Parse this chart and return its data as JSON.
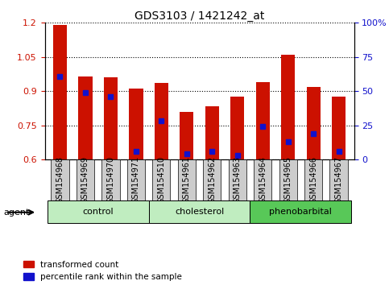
{
  "title": "GDS3103 / 1421242_at",
  "samples": [
    "GSM154968",
    "GSM154969",
    "GSM154970",
    "GSM154971",
    "GSM154510",
    "GSM154961",
    "GSM154962",
    "GSM154963",
    "GSM154964",
    "GSM154965",
    "GSM154966",
    "GSM154967"
  ],
  "red_values": [
    1.19,
    0.965,
    0.96,
    0.91,
    0.935,
    0.81,
    0.835,
    0.875,
    0.94,
    1.06,
    0.92,
    0.875
  ],
  "blue_values_left": [
    0.965,
    0.895,
    0.875,
    0.635,
    0.77,
    0.625,
    0.635,
    0.618,
    0.745,
    0.68,
    0.715,
    0.635
  ],
  "ylim_left": [
    0.6,
    1.2
  ],
  "ylim_right": [
    0,
    100
  ],
  "yticks_left": [
    0.6,
    0.75,
    0.9,
    1.05,
    1.2
  ],
  "yticks_right": [
    0,
    25,
    50,
    75,
    100
  ],
  "ytick_labels_left": [
    "0.6",
    "0.75",
    "0.9",
    "1.05",
    "1.2"
  ],
  "ytick_labels_right": [
    "0",
    "25",
    "50",
    "75",
    "100%"
  ],
  "group_bounds": [
    {
      "start": 0,
      "end": 3,
      "label": "control",
      "color": "#c0edc0"
    },
    {
      "start": 4,
      "end": 7,
      "label": "cholesterol",
      "color": "#c0edc0"
    },
    {
      "start": 8,
      "end": 11,
      "label": "phenobarbital",
      "color": "#58c858"
    }
  ],
  "bar_width": 0.55,
  "red_color": "#cc1100",
  "blue_color": "#1111cc",
  "dot_size": 5,
  "grid_linestyle": "dotted",
  "grid_linewidth": 0.8,
  "grid_color": "#000000",
  "background_color": "#ffffff",
  "tick_bg_color": "#cccccc",
  "legend_labels": [
    "transformed count",
    "percentile rank within the sample"
  ],
  "agent_label": "agent",
  "left_tick_color": "#cc1100",
  "right_tick_color": "#1111cc",
  "title_fontsize": 10,
  "tick_fontsize": 7,
  "group_fontsize": 8,
  "legend_fontsize": 7.5
}
